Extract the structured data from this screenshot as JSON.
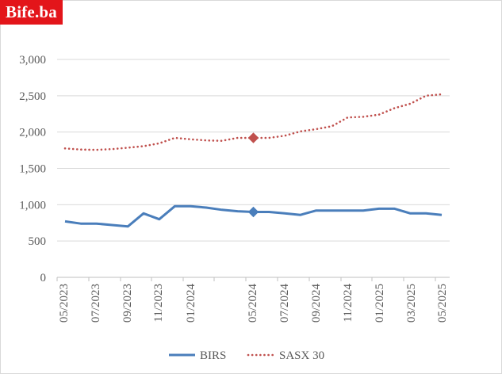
{
  "logo": {
    "text": "Bife.ba",
    "color": "#e3151a"
  },
  "chart_data": {
    "type": "line",
    "title": "",
    "xlabel": "",
    "ylabel": "",
    "ylim": [
      0,
      3000
    ],
    "yticks": [
      0,
      500,
      1000,
      1500,
      2000,
      2500,
      3000
    ],
    "ytick_labels": [
      "0",
      "500",
      "1,000",
      "1,500",
      "2,000",
      "2,500",
      "3,000"
    ],
    "grid": "horizontal",
    "legend_position": "bottom",
    "xtick_labels": [
      "05/2023",
      "07/2023",
      "09/2023",
      "11/2023",
      "01/2024",
      "05/2024",
      "07/2024",
      "09/2024",
      "11/2024",
      "01/2025",
      "03/2025",
      "05/2025"
    ],
    "series": [
      {
        "name": "BIRS",
        "color": "#4a7ebb",
        "style": "solid",
        "marker": {
          "index": 12,
          "shape": "diamond",
          "color": "#4a7ebb"
        },
        "values": [
          770,
          740,
          740,
          720,
          700,
          880,
          800,
          980,
          980,
          960,
          930,
          910,
          900,
          900,
          880,
          860,
          920,
          920,
          920,
          920,
          945,
          945,
          880,
          880,
          860
        ]
      },
      {
        "name": "SASX 30",
        "color": "#c0504d",
        "style": "dotted",
        "marker": {
          "index": 12,
          "shape": "diamond",
          "color": "#c0504d"
        },
        "values": [
          1775,
          1760,
          1755,
          1765,
          1785,
          1805,
          1845,
          1920,
          1900,
          1885,
          1880,
          1920,
          1920,
          1920,
          1950,
          2010,
          2040,
          2080,
          2200,
          2210,
          2240,
          2330,
          2390,
          2500,
          2520
        ]
      }
    ]
  }
}
